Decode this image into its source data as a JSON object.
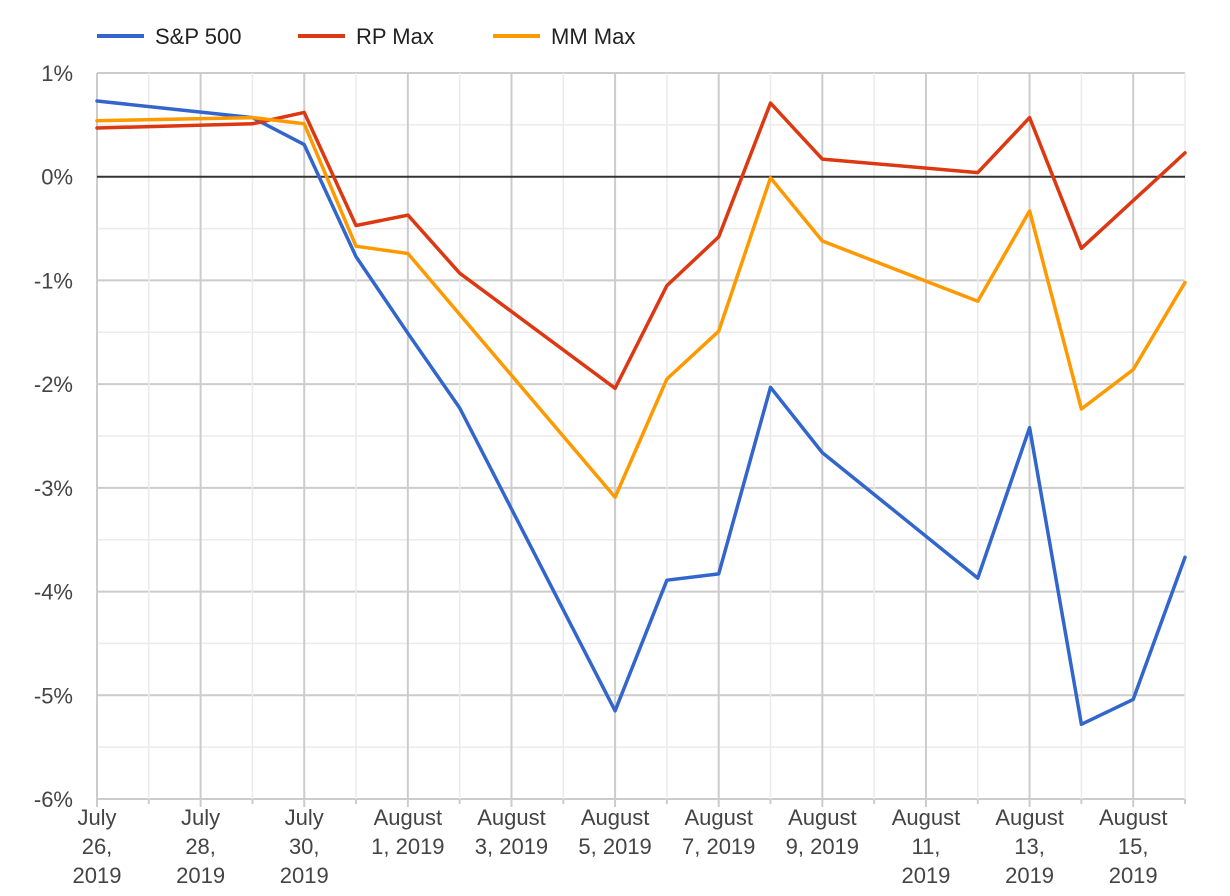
{
  "chart_data": {
    "type": "line",
    "x": [
      "2019-07-26",
      "2019-07-27",
      "2019-07-28",
      "2019-07-29",
      "2019-07-30",
      "2019-07-31",
      "2019-08-01",
      "2019-08-02",
      "2019-08-03",
      "2019-08-04",
      "2019-08-05",
      "2019-08-06",
      "2019-08-07",
      "2019-08-08",
      "2019-08-09",
      "2019-08-10",
      "2019-08-11",
      "2019-08-12",
      "2019-08-13",
      "2019-08-14",
      "2019-08-15",
      "2019-08-16"
    ],
    "x_tick_labels": [
      [
        "July",
        "26,",
        "2019"
      ],
      [
        "July",
        "28,",
        "2019"
      ],
      [
        "July",
        "30,",
        "2019"
      ],
      [
        "August",
        "1, 2019"
      ],
      [
        "August",
        "3, 2019"
      ],
      [
        "August",
        "5, 2019"
      ],
      [
        "August",
        "7, 2019"
      ],
      [
        "August",
        "9, 2019"
      ],
      [
        "August",
        "11,",
        "2019"
      ],
      [
        "August",
        "13,",
        "2019"
      ],
      [
        "August",
        "15,",
        "2019"
      ]
    ],
    "y_tick_labels": [
      "1%",
      "0%",
      "-1%",
      "-2%",
      "-3%",
      "-4%",
      "-5%",
      "-6%"
    ],
    "ylim": [
      -6,
      1
    ],
    "y_unit": "%",
    "legend_position": "top-left",
    "grid": true,
    "series": [
      {
        "name": "S&P 500",
        "color": "#3366cc",
        "points": [
          [
            "2019-07-26",
            0.73
          ],
          [
            "2019-07-29",
            0.57
          ],
          [
            "2019-07-30",
            0.31
          ],
          [
            "2019-07-31",
            -0.77
          ],
          [
            "2019-08-01",
            -1.51
          ],
          [
            "2019-08-02",
            -2.23
          ],
          [
            "2019-08-05",
            -5.15
          ],
          [
            "2019-08-06",
            -3.89
          ],
          [
            "2019-08-07",
            -3.83
          ],
          [
            "2019-08-08",
            -2.03
          ],
          [
            "2019-08-09",
            -2.66
          ],
          [
            "2019-08-12",
            -3.87
          ],
          [
            "2019-08-13",
            -2.42
          ],
          [
            "2019-08-14",
            -5.28
          ],
          [
            "2019-08-15",
            -5.04
          ],
          [
            "2019-08-16",
            -3.67
          ]
        ]
      },
      {
        "name": "RP Max",
        "color": "#dc3912",
        "points": [
          [
            "2019-07-26",
            0.47
          ],
          [
            "2019-07-29",
            0.51
          ],
          [
            "2019-07-30",
            0.62
          ],
          [
            "2019-07-31",
            -0.47
          ],
          [
            "2019-08-01",
            -0.37
          ],
          [
            "2019-08-02",
            -0.93
          ],
          [
            "2019-08-05",
            -2.04
          ],
          [
            "2019-08-06",
            -1.05
          ],
          [
            "2019-08-07",
            -0.58
          ],
          [
            "2019-08-08",
            0.71
          ],
          [
            "2019-08-09",
            0.17
          ],
          [
            "2019-08-12",
            0.04
          ],
          [
            "2019-08-13",
            0.57
          ],
          [
            "2019-08-14",
            -0.69
          ],
          [
            "2019-08-16",
            0.23
          ]
        ]
      },
      {
        "name": "MM Max",
        "color": "#ff9900",
        "points": [
          [
            "2019-07-26",
            0.54
          ],
          [
            "2019-07-29",
            0.57
          ],
          [
            "2019-07-30",
            0.51
          ],
          [
            "2019-07-31",
            -0.67
          ],
          [
            "2019-08-01",
            -0.74
          ],
          [
            "2019-08-05",
            -3.09
          ],
          [
            "2019-08-06",
            -1.95
          ],
          [
            "2019-08-07",
            -1.49
          ],
          [
            "2019-08-08",
            -0.01
          ],
          [
            "2019-08-09",
            -0.62
          ],
          [
            "2019-08-12",
            -1.2
          ],
          [
            "2019-08-13",
            -0.33
          ],
          [
            "2019-08-14",
            -2.24
          ],
          [
            "2019-08-15",
            -1.86
          ],
          [
            "2019-08-16",
            -1.02
          ]
        ]
      }
    ]
  }
}
